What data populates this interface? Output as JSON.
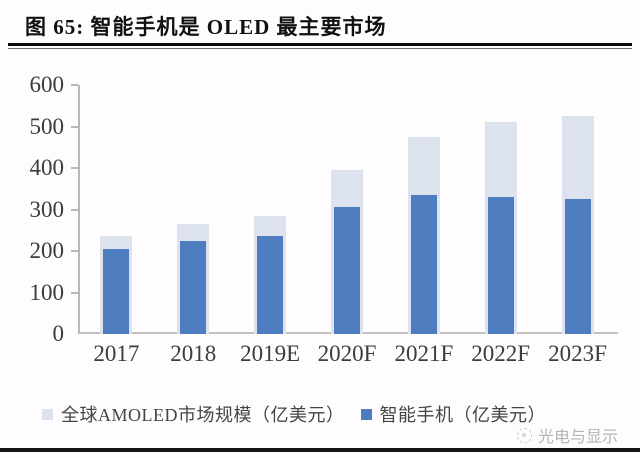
{
  "figure": {
    "title": "图 65:  智能手机是 OLED 最主要市场",
    "watermark": "光电与显示"
  },
  "chart_data": {
    "type": "bar",
    "subtype": "overlapped-bars",
    "title": "智能手机是 OLED 最主要市场",
    "categories": [
      "2017",
      "2018",
      "2019E",
      "2020F",
      "2021F",
      "2022F",
      "2023F"
    ],
    "series": [
      {
        "name": "全球AMOLED市场规模（亿美元）",
        "color": "#dce2ee",
        "values": [
          235,
          265,
          285,
          395,
          475,
          510,
          525
        ]
      },
      {
        "name": "智能手机（亿美元）",
        "color": "#4d7dbe",
        "values": [
          205,
          225,
          235,
          305,
          335,
          330,
          325
        ]
      }
    ],
    "xlabel": "",
    "ylabel": "",
    "ylim": [
      0,
      600
    ],
    "yticks": [
      0,
      100,
      200,
      300,
      400,
      500,
      600
    ],
    "grid": false,
    "legend_position": "bottom",
    "axis_color": "#b9b9b9",
    "label_color": "#3c3c3c"
  }
}
